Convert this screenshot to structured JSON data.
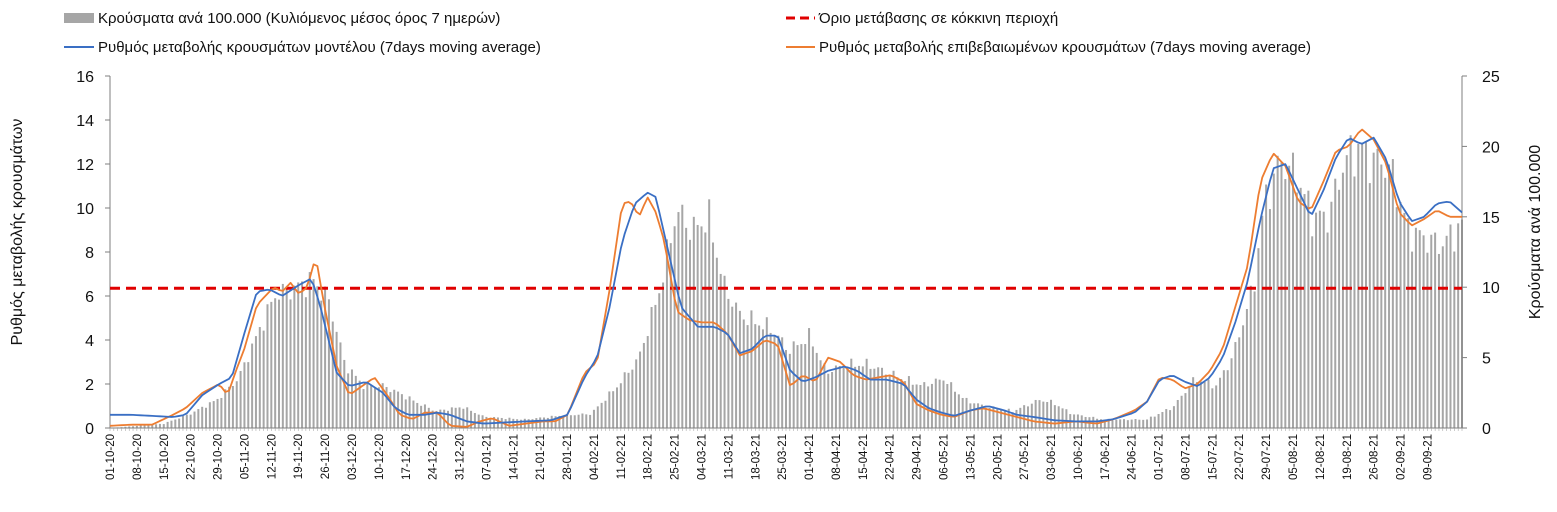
{
  "chart_data": {
    "type": "bar+line",
    "title": "",
    "legend": {
      "placement": "top",
      "items": [
        {
          "key": "cases",
          "label": "Κρούσματα ανά 100.000 (Κυλιόμενος μέσος όρος 7 ημερών)",
          "color": "#a6a6a6",
          "kind": "bar"
        },
        {
          "key": "threshold",
          "label": "Όριο μετάβασης σε κόκκινη περιοχή",
          "color": "#e00000",
          "kind": "dashed-line"
        },
        {
          "key": "model",
          "label": "Ρυθμός μεταβολής κρουσμάτων μοντέλου (7days moving average)",
          "color": "#3a6fc4",
          "kind": "line"
        },
        {
          "key": "confirmed",
          "label": "Ρυθμός μεταβολής επιβεβαιωμένων κρουσμάτων (7days moving average)",
          "color": "#ed7d31",
          "kind": "line"
        }
      ]
    },
    "y_left": {
      "label": "Ρυθμός μεταβολής κρουσμάτων",
      "range": [
        0,
        16
      ],
      "ticks": [
        "0",
        "2",
        "4",
        "6",
        "8",
        "10",
        "12",
        "14",
        "16"
      ]
    },
    "y_right": {
      "label": "Κρούσματα ανά 100.000",
      "range": [
        0,
        25
      ],
      "ticks": [
        "0",
        "5",
        "10",
        "15",
        "20",
        "25"
      ]
    },
    "x_tick_labels": [
      "01-10-20",
      "08-10-20",
      "15-10-20",
      "22-10-20",
      "29-10-20",
      "05-11-20",
      "12-11-20",
      "19-11-20",
      "26-11-20",
      "03-12-20",
      "10-12-20",
      "17-12-20",
      "24-12-20",
      "31-12-20",
      "07-01-21",
      "14-01-21",
      "21-01-21",
      "28-01-21",
      "04-02-21",
      "11-02-21",
      "18-02-21",
      "25-02-21",
      "04-03-21",
      "11-03-21",
      "18-03-21",
      "25-03-21",
      "01-04-21",
      "08-04-21",
      "15-04-21",
      "22-04-21",
      "29-04-21",
      "06-05-21",
      "13-05-21",
      "20-05-21",
      "27-05-21",
      "03-06-21",
      "10-06-21",
      "17-06-21",
      "24-06-21",
      "01-07-21",
      "08-07-21",
      "15-07-21",
      "22-07-21",
      "29-07-21",
      "05-08-21",
      "12-08-21",
      "19-08-21",
      "26-08-21",
      "02-09-21",
      "09-09-21"
    ],
    "days": 353,
    "threshold_value": 6.35,
    "cases_anchors": [
      [
        0,
        0
      ],
      [
        20,
        0.3
      ],
      [
        30,
        1.0
      ],
      [
        40,
        2.0
      ],
      [
        48,
        3.5
      ],
      [
        56,
        7
      ],
      [
        62,
        9.5
      ],
      [
        70,
        10
      ],
      [
        76,
        10.5
      ],
      [
        82,
        9
      ],
      [
        88,
        4.5
      ],
      [
        95,
        3
      ],
      [
        102,
        3
      ],
      [
        108,
        2.5
      ],
      [
        115,
        1.8
      ],
      [
        122,
        1.2
      ],
      [
        132,
        1.5
      ],
      [
        140,
        0.8
      ],
      [
        155,
        0.6
      ],
      [
        170,
        0.9
      ],
      [
        180,
        1.0
      ],
      [
        190,
        3
      ],
      [
        198,
        5
      ],
      [
        206,
        10
      ],
      [
        212,
        15.5
      ],
      [
        218,
        14
      ],
      [
        224,
        15
      ],
      [
        230,
        10
      ],
      [
        236,
        8
      ],
      [
        242,
        7.5
      ],
      [
        248,
        7
      ],
      [
        254,
        5.5
      ],
      [
        262,
        6.5
      ],
      [
        268,
        4
      ],
      [
        276,
        4.5
      ],
      [
        284,
        4.5
      ],
      [
        290,
        4
      ],
      [
        297,
        3.5
      ],
      [
        304,
        3
      ],
      [
        312,
        3.5
      ],
      [
        320,
        2
      ],
      [
        328,
        1.5
      ],
      [
        338,
        1.2
      ],
      [
        348,
        2
      ],
      [
        353,
        1.8
      ],
      [
        360,
        1.0
      ],
      [
        372,
        0.6
      ],
      [
        388,
        0.6
      ],
      [
        398,
        1.5
      ],
      [
        406,
        3.5
      ],
      [
        414,
        3
      ],
      [
        420,
        5
      ],
      [
        428,
        10
      ],
      [
        432,
        16
      ],
      [
        438,
        19
      ],
      [
        444,
        18
      ],
      [
        450,
        15
      ],
      [
        456,
        15
      ],
      [
        462,
        19
      ],
      [
        468,
        20
      ],
      [
        472,
        19
      ],
      [
        476,
        19
      ],
      [
        480,
        18
      ],
      [
        486,
        14
      ],
      [
        492,
        13.5
      ],
      [
        498,
        13
      ],
      [
        504,
        14
      ],
      [
        506,
        14.5
      ]
    ],
    "model_anchors": [
      [
        0,
        0.6
      ],
      [
        10,
        0.6
      ],
      [
        20,
        0.55
      ],
      [
        30,
        0.5
      ],
      [
        36,
        0.6
      ],
      [
        44,
        1.5
      ],
      [
        52,
        2.0
      ],
      [
        58,
        2.3
      ],
      [
        64,
        4.3
      ],
      [
        70,
        6.2
      ],
      [
        76,
        6.3
      ],
      [
        82,
        6.0
      ],
      [
        90,
        6.5
      ],
      [
        96,
        6.8
      ],
      [
        100,
        5.6
      ],
      [
        108,
        2.5
      ],
      [
        114,
        1.9
      ],
      [
        122,
        2.1
      ],
      [
        130,
        1.6
      ],
      [
        136,
        0.9
      ],
      [
        142,
        0.6
      ],
      [
        150,
        0.6
      ],
      [
        156,
        0.7
      ],
      [
        162,
        0.6
      ],
      [
        170,
        0.3
      ],
      [
        178,
        0.2
      ],
      [
        188,
        0.25
      ],
      [
        198,
        0.3
      ],
      [
        210,
        0.35
      ],
      [
        218,
        0.6
      ],
      [
        226,
        2.3
      ],
      [
        232,
        3.2
      ],
      [
        238,
        5.5
      ],
      [
        244,
        8.5
      ],
      [
        250,
        10.2
      ],
      [
        256,
        10.7
      ],
      [
        260,
        10.5
      ],
      [
        266,
        8.0
      ],
      [
        272,
        5.5
      ],
      [
        280,
        4.6
      ],
      [
        288,
        4.6
      ],
      [
        294,
        4.3
      ],
      [
        300,
        3.4
      ],
      [
        306,
        3.6
      ],
      [
        312,
        4.2
      ],
      [
        318,
        4.2
      ],
      [
        324,
        2.6
      ],
      [
        330,
        2.1
      ],
      [
        336,
        2.3
      ],
      [
        342,
        2.6
      ],
      [
        350,
        2.8
      ],
      [
        356,
        2.6
      ],
      [
        362,
        2.2
      ],
      [
        370,
        2.2
      ],
      [
        378,
        2.0
      ],
      [
        384,
        1.3
      ],
      [
        390,
        0.9
      ],
      [
        396,
        0.7
      ],
      [
        402,
        0.55
      ],
      [
        410,
        0.8
      ],
      [
        418,
        1.0
      ],
      [
        426,
        0.8
      ],
      [
        432,
        0.6
      ],
      [
        440,
        0.5
      ],
      [
        450,
        0.35
      ],
      [
        460,
        0.3
      ],
      [
        470,
        0.3
      ],
      [
        478,
        0.4
      ],
      [
        488,
        0.7
      ],
      [
        494,
        1.2
      ],
      [
        500,
        2.2
      ],
      [
        506,
        2.4
      ],
      [
        512,
        2.1
      ],
      [
        518,
        1.9
      ],
      [
        524,
        2.3
      ],
      [
        530,
        3.2
      ],
      [
        536,
        4.8
      ],
      [
        542,
        6.7
      ],
      [
        548,
        9.5
      ],
      [
        554,
        11.8
      ],
      [
        560,
        12.0
      ],
      [
        566,
        10.8
      ],
      [
        572,
        9.6
      ],
      [
        578,
        10.8
      ],
      [
        584,
        12.3
      ],
      [
        590,
        13.2
      ],
      [
        596,
        12.9
      ],
      [
        602,
        13.2
      ],
      [
        608,
        12.2
      ],
      [
        614,
        10.3
      ],
      [
        620,
        9.4
      ],
      [
        626,
        9.6
      ],
      [
        632,
        10.2
      ],
      [
        638,
        10.3
      ],
      [
        644,
        9.8
      ]
    ],
    "confirmed_anchors": [
      [
        0,
        0.1
      ],
      [
        10,
        0.15
      ],
      [
        20,
        0.15
      ],
      [
        30,
        0.6
      ],
      [
        36,
        0.9
      ],
      [
        44,
        1.6
      ],
      [
        52,
        2.0
      ],
      [
        56,
        1.5
      ],
      [
        60,
        2.6
      ],
      [
        64,
        3.6
      ],
      [
        70,
        5.6
      ],
      [
        74,
        6.0
      ],
      [
        78,
        6.4
      ],
      [
        82,
        6.2
      ],
      [
        86,
        6.6
      ],
      [
        90,
        6.1
      ],
      [
        94,
        6.4
      ],
      [
        98,
        7.8
      ],
      [
        102,
        5.6
      ],
      [
        108,
        2.8
      ],
      [
        114,
        1.5
      ],
      [
        120,
        1.9
      ],
      [
        126,
        2.3
      ],
      [
        132,
        1.5
      ],
      [
        138,
        0.6
      ],
      [
        144,
        0.4
      ],
      [
        150,
        0.7
      ],
      [
        156,
        0.7
      ],
      [
        162,
        0.1
      ],
      [
        170,
        0.05
      ],
      [
        176,
        0.3
      ],
      [
        182,
        0.45
      ],
      [
        190,
        0.1
      ],
      [
        198,
        0.2
      ],
      [
        206,
        0.3
      ],
      [
        212,
        0.3
      ],
      [
        218,
        0.6
      ],
      [
        226,
        2.5
      ],
      [
        232,
        3.0
      ],
      [
        238,
        6.3
      ],
      [
        244,
        10.2
      ],
      [
        248,
        10.3
      ],
      [
        252,
        9.6
      ],
      [
        256,
        10.5
      ],
      [
        260,
        9.8
      ],
      [
        264,
        8.5
      ],
      [
        270,
        5.3
      ],
      [
        276,
        4.9
      ],
      [
        282,
        4.8
      ],
      [
        288,
        4.8
      ],
      [
        294,
        4.3
      ],
      [
        300,
        3.3
      ],
      [
        306,
        3.5
      ],
      [
        312,
        4.0
      ],
      [
        318,
        3.8
      ],
      [
        324,
        1.9
      ],
      [
        330,
        2.4
      ],
      [
        336,
        2.1
      ],
      [
        342,
        3.2
      ],
      [
        348,
        3.0
      ],
      [
        354,
        2.4
      ],
      [
        360,
        2.2
      ],
      [
        366,
        2.3
      ],
      [
        372,
        2.4
      ],
      [
        378,
        2.1
      ],
      [
        384,
        1.1
      ],
      [
        390,
        0.8
      ],
      [
        396,
        0.6
      ],
      [
        402,
        0.5
      ],
      [
        410,
        0.8
      ],
      [
        416,
        0.9
      ],
      [
        424,
        0.7
      ],
      [
        432,
        0.5
      ],
      [
        440,
        0.3
      ],
      [
        450,
        0.2
      ],
      [
        460,
        0.3
      ],
      [
        470,
        0.2
      ],
      [
        478,
        0.4
      ],
      [
        488,
        0.8
      ],
      [
        494,
        1.2
      ],
      [
        500,
        2.3
      ],
      [
        506,
        2.2
      ],
      [
        512,
        1.8
      ],
      [
        518,
        2.0
      ],
      [
        524,
        2.6
      ],
      [
        530,
        3.6
      ],
      [
        536,
        5.5
      ],
      [
        542,
        7.4
      ],
      [
        548,
        11.2
      ],
      [
        554,
        12.5
      ],
      [
        560,
        11.9
      ],
      [
        566,
        10.3
      ],
      [
        572,
        9.9
      ],
      [
        578,
        11.2
      ],
      [
        584,
        12.6
      ],
      [
        590,
        12.8
      ],
      [
        596,
        13.6
      ],
      [
        602,
        13.1
      ],
      [
        608,
        12.0
      ],
      [
        614,
        9.8
      ],
      [
        620,
        9.2
      ],
      [
        626,
        9.5
      ],
      [
        632,
        9.9
      ],
      [
        638,
        9.6
      ],
      [
        644,
        9.6
      ]
    ]
  }
}
